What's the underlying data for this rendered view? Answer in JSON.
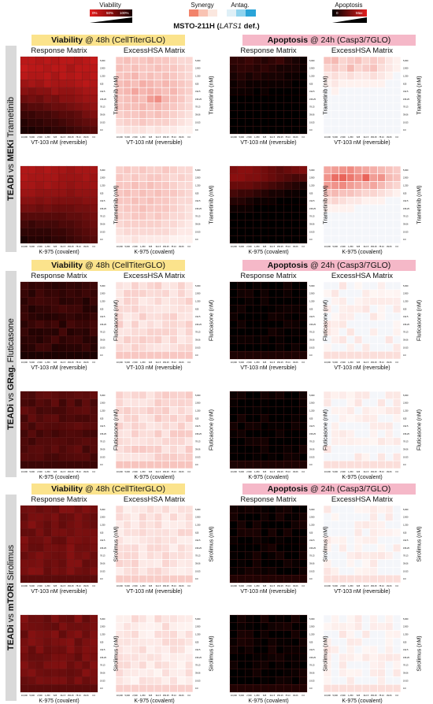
{
  "legend": {
    "viability": {
      "title": "Viability",
      "ticks": [
        "0%",
        "50%",
        "100%"
      ],
      "colors": [
        "#e21d1d",
        "#8a0d0d",
        "#1a0000"
      ]
    },
    "synergy": {
      "title": "Synergy",
      "colors": [
        "#f2836b",
        "#f9c3b3",
        "#fbe7df",
        "#ffffff",
        "#dff0f7",
        "#8fd3ee",
        "#2aa4d8"
      ]
    },
    "antag": {
      "title": "Antag."
    },
    "apoptosis": {
      "title": "Apoptosis",
      "ticks": [
        "0",
        "Max"
      ]
    }
  },
  "cell_line": {
    "name": "MSTO-211H",
    "gene": "LATS1",
    "suffix": " def.)"
  },
  "banners": {
    "viability": {
      "bold": "Viability",
      "rest": " @ 48h (CellTiterGLO)"
    },
    "apoptosis": {
      "bold": "Apoptosis",
      "rest": " @ 24h (Casp3/7GLO)"
    }
  },
  "matrix_titles": {
    "response": "Response Matrix",
    "excess": "ExcessHSA Matrix"
  },
  "sections": [
    {
      "label_prefix": "TEADi",
      "label_mid": " vs ",
      "label_bold": "MEKi",
      "label_drug": " Trametinib",
      "ylabel": "Trametinib (nM)"
    },
    {
      "label_prefix": "TEADi",
      "label_mid": " vs ",
      "label_bold": "GRag.",
      "label_drug": " Fluticasone",
      "ylabel": "Fluticasone (nM)"
    },
    {
      "label_prefix": "TEADi",
      "label_mid": " vs ",
      "label_bold": "mTORi",
      "label_drug": " Sirolimus",
      "ylabel": "Sirolimus (nM)"
    }
  ],
  "xlabels": [
    "VT-103 nM (reversible)",
    "K-975 (covalent)"
  ],
  "chart_data": {
    "type": "heatmap",
    "x_ticks": [
      "10,000",
      "5,000",
      "2,500",
      "1,250",
      "625",
      "312.5",
      "156.25",
      "78.13",
      "39.06",
      "0.0"
    ],
    "y_ticks": [
      "5,000",
      "2,500",
      "1,250",
      "625",
      "312.5",
      "156.25",
      "78.13",
      "39.06",
      "19.53",
      "0.0"
    ],
    "note": "viability heatmaps: 0-1 darkness; excessHSA: synergy intensity 0-1; apoptosis: 0-1",
    "panels": [
      {
        "section": 0,
        "row": 0,
        "viability": [
          [
            0.2,
            0.2,
            0.25,
            0.2,
            0.25,
            0.2,
            0.2,
            0.25,
            0.2,
            0.15
          ],
          [
            0.15,
            0.2,
            0.2,
            0.25,
            0.2,
            0.2,
            0.3,
            0.2,
            0.2,
            0.2
          ],
          [
            0.2,
            0.25,
            0.25,
            0.2,
            0.3,
            0.2,
            0.25,
            0.2,
            0.25,
            0.2
          ],
          [
            0.35,
            0.3,
            0.35,
            0.25,
            0.3,
            0.3,
            0.3,
            0.25,
            0.2,
            0.25
          ],
          [
            0.45,
            0.5,
            0.45,
            0.45,
            0.35,
            0.4,
            0.4,
            0.35,
            0.3,
            0.3
          ],
          [
            0.6,
            0.55,
            0.6,
            0.5,
            0.55,
            0.45,
            0.45,
            0.4,
            0.35,
            0.35
          ],
          [
            0.75,
            0.7,
            0.7,
            0.65,
            0.6,
            0.6,
            0.55,
            0.5,
            0.45,
            0.4
          ],
          [
            0.85,
            0.85,
            0.8,
            0.8,
            0.75,
            0.7,
            0.7,
            0.65,
            0.55,
            0.5
          ],
          [
            0.95,
            0.9,
            0.9,
            0.85,
            0.85,
            0.8,
            0.75,
            0.7,
            0.65,
            0.6
          ],
          [
            1.0,
            1.0,
            0.95,
            0.95,
            0.9,
            0.9,
            0.85,
            0.8,
            0.75,
            0.7
          ]
        ],
        "excess": [
          [
            0.3,
            0.35,
            0.3,
            0.3,
            0.35,
            0.3,
            0.3,
            0.25,
            0.2,
            0.2
          ],
          [
            0.35,
            0.3,
            0.35,
            0.3,
            0.3,
            0.35,
            0.3,
            0.3,
            0.25,
            0.2
          ],
          [
            0.3,
            0.35,
            0.4,
            0.3,
            0.35,
            0.3,
            0.35,
            0.3,
            0.25,
            0.2
          ],
          [
            0.35,
            0.4,
            0.35,
            0.45,
            0.4,
            0.35,
            0.4,
            0.35,
            0.3,
            0.25
          ],
          [
            0.35,
            0.4,
            0.5,
            0.4,
            0.45,
            0.4,
            0.35,
            0.4,
            0.3,
            0.25
          ],
          [
            0.3,
            0.35,
            0.4,
            0.35,
            0.55,
            0.65,
            0.4,
            0.35,
            0.3,
            0.2
          ],
          [
            0.3,
            0.35,
            0.35,
            0.4,
            0.35,
            0.4,
            0.35,
            0.3,
            0.25,
            0.2
          ],
          [
            0.25,
            0.3,
            0.3,
            0.35,
            0.3,
            0.35,
            0.3,
            0.25,
            0.2,
            0.15
          ],
          [
            0.2,
            0.25,
            0.25,
            0.3,
            0.25,
            0.25,
            0.25,
            0.2,
            0.15,
            0.1
          ],
          [
            0.1,
            0.15,
            0.15,
            0.15,
            0.1,
            0.15,
            0.1,
            0.1,
            0.05,
            0.05
          ]
        ],
        "apoptosis": [
          [
            0.2,
            0.2,
            0.25,
            0.2,
            0.15,
            0.2,
            0.25,
            0.15,
            0.1,
            0.05
          ],
          [
            0.15,
            0.2,
            0.2,
            0.15,
            0.2,
            0.15,
            0.1,
            0.1,
            0.1,
            0.05
          ],
          [
            0.1,
            0.15,
            0.1,
            0.15,
            0.1,
            0.1,
            0.1,
            0.05,
            0.05,
            0.0
          ],
          [
            0.05,
            0.1,
            0.05,
            0.05,
            0.05,
            0.05,
            0.05,
            0.05,
            0.0,
            0.0
          ],
          [
            0.05,
            0.05,
            0.05,
            0.0,
            0.05,
            0.0,
            0.0,
            0.0,
            0.0,
            0.0
          ],
          [
            0.0,
            0.0,
            0.0,
            0.0,
            0.0,
            0.0,
            0.0,
            0.0,
            0.0,
            0.0
          ],
          [
            0.0,
            0.0,
            0.0,
            0.0,
            0.0,
            0.0,
            0.0,
            0.0,
            0.0,
            0.0
          ],
          [
            0.0,
            0.0,
            0.0,
            0.0,
            0.0,
            0.0,
            0.0,
            0.0,
            0.0,
            0.0
          ],
          [
            0.0,
            0.0,
            0.0,
            0.0,
            0.0,
            0.0,
            0.0,
            0.0,
            0.0,
            0.0
          ],
          [
            0.0,
            0.0,
            0.0,
            0.0,
            0.0,
            0.0,
            0.0,
            0.0,
            0.0,
            0.0
          ]
        ],
        "apo_excess": [
          [
            0.3,
            0.35,
            0.2,
            0.25,
            0.3,
            0.2,
            0.25,
            0.2,
            0.1,
            0.05
          ],
          [
            0.2,
            0.25,
            0.2,
            0.35,
            0.2,
            0.25,
            0.3,
            0.15,
            0.1,
            0.05
          ],
          [
            0.1,
            0.15,
            0.1,
            0.15,
            0.1,
            0.1,
            0.15,
            0.1,
            0.05,
            0.0
          ],
          [
            0.05,
            0.1,
            0.05,
            0.05,
            0.05,
            0.05,
            0.05,
            0.05,
            0.0,
            0.0
          ],
          [
            0.0,
            0.05,
            0.0,
            0.0,
            0.0,
            0.0,
            0.0,
            0.0,
            0.0,
            0.0
          ],
          [
            0.0,
            0.0,
            0.0,
            0.0,
            0.0,
            0.0,
            0.0,
            0.0,
            0.0,
            0.0
          ],
          [
            0.0,
            0.0,
            0.0,
            0.0,
            0.0,
            0.0,
            0.0,
            0.0,
            0.0,
            0.0
          ],
          [
            0.0,
            0.0,
            0.0,
            0.0,
            0.0,
            0.0,
            0.0,
            0.0,
            0.0,
            0.0
          ],
          [
            0.0,
            0.0,
            0.0,
            0.0,
            0.0,
            0.0,
            0.0,
            0.0,
            0.0,
            0.0
          ],
          [
            0.0,
            0.0,
            0.0,
            0.0,
            0.0,
            0.0,
            0.0,
            0.0,
            0.0,
            0.0
          ]
        ]
      },
      {
        "section": 0,
        "row": 1,
        "viability": [
          [
            0.25,
            0.25,
            0.3,
            0.25,
            0.3,
            0.3,
            0.35,
            0.3,
            0.3,
            0.3
          ],
          [
            0.25,
            0.3,
            0.3,
            0.3,
            0.3,
            0.35,
            0.35,
            0.35,
            0.3,
            0.35
          ],
          [
            0.3,
            0.3,
            0.35,
            0.3,
            0.35,
            0.35,
            0.4,
            0.35,
            0.35,
            0.35
          ],
          [
            0.35,
            0.35,
            0.4,
            0.4,
            0.4,
            0.4,
            0.45,
            0.4,
            0.4,
            0.4
          ],
          [
            0.45,
            0.45,
            0.5,
            0.45,
            0.5,
            0.5,
            0.5,
            0.5,
            0.45,
            0.45
          ],
          [
            0.55,
            0.55,
            0.6,
            0.55,
            0.6,
            0.6,
            0.6,
            0.55,
            0.55,
            0.5
          ],
          [
            0.7,
            0.7,
            0.7,
            0.7,
            0.7,
            0.7,
            0.65,
            0.65,
            0.6,
            0.55
          ],
          [
            0.8,
            0.85,
            0.8,
            0.8,
            0.8,
            0.75,
            0.75,
            0.7,
            0.65,
            0.6
          ],
          [
            0.9,
            0.9,
            0.9,
            0.9,
            0.85,
            0.85,
            0.8,
            0.75,
            0.7,
            0.65
          ],
          [
            1.0,
            0.95,
            0.95,
            0.95,
            0.9,
            0.9,
            0.85,
            0.8,
            0.75,
            0.7
          ]
        ],
        "excess": [
          [
            0.25,
            0.3,
            0.25,
            0.3,
            0.25,
            0.25,
            0.3,
            0.25,
            0.2,
            0.2
          ],
          [
            0.3,
            0.25,
            0.3,
            0.25,
            0.3,
            0.3,
            0.25,
            0.2,
            0.25,
            0.2
          ],
          [
            0.3,
            0.3,
            0.35,
            0.3,
            0.35,
            0.3,
            0.3,
            0.25,
            0.2,
            0.2
          ],
          [
            0.3,
            0.35,
            0.3,
            0.35,
            0.3,
            0.35,
            0.3,
            0.3,
            0.25,
            0.2
          ],
          [
            0.3,
            0.3,
            0.35,
            0.3,
            0.35,
            0.3,
            0.3,
            0.25,
            0.2,
            0.2
          ],
          [
            0.25,
            0.3,
            0.3,
            0.35,
            0.3,
            0.3,
            0.3,
            0.25,
            0.2,
            0.15
          ],
          [
            0.25,
            0.25,
            0.3,
            0.3,
            0.25,
            0.3,
            0.25,
            0.2,
            0.2,
            0.15
          ],
          [
            0.2,
            0.25,
            0.25,
            0.25,
            0.25,
            0.25,
            0.2,
            0.2,
            0.15,
            0.1
          ],
          [
            0.15,
            0.2,
            0.2,
            0.2,
            0.2,
            0.2,
            0.2,
            0.15,
            0.1,
            0.1
          ],
          [
            0.1,
            0.1,
            0.15,
            0.1,
            0.1,
            0.1,
            0.1,
            0.05,
            0.05,
            0.05
          ]
        ],
        "apoptosis": [
          [
            0.55,
            0.6,
            0.6,
            0.55,
            0.5,
            0.45,
            0.4,
            0.45,
            0.5,
            0.55
          ],
          [
            0.6,
            0.6,
            0.55,
            0.55,
            0.5,
            0.45,
            0.4,
            0.35,
            0.3,
            0.35
          ],
          [
            0.45,
            0.45,
            0.45,
            0.4,
            0.35,
            0.3,
            0.25,
            0.2,
            0.15,
            0.1
          ],
          [
            0.3,
            0.25,
            0.25,
            0.2,
            0.15,
            0.1,
            0.1,
            0.05,
            0.05,
            0.0
          ],
          [
            0.15,
            0.15,
            0.1,
            0.05,
            0.05,
            0.05,
            0.0,
            0.0,
            0.0,
            0.0
          ],
          [
            0.05,
            0.05,
            0.05,
            0.0,
            0.0,
            0.0,
            0.0,
            0.0,
            0.0,
            0.0
          ],
          [
            0.0,
            0.0,
            0.0,
            0.0,
            0.0,
            0.0,
            0.0,
            0.0,
            0.0,
            0.0
          ],
          [
            0.0,
            0.0,
            0.0,
            0.0,
            0.0,
            0.0,
            0.0,
            0.0,
            0.0,
            0.0
          ],
          [
            0.0,
            0.0,
            0.0,
            0.0,
            0.0,
            0.0,
            0.0,
            0.0,
            0.0,
            0.0
          ],
          [
            0.0,
            0.0,
            0.0,
            0.0,
            0.0,
            0.0,
            0.0,
            0.0,
            0.0,
            0.0
          ]
        ],
        "apo_excess": [
          [
            0.45,
            0.5,
            0.55,
            0.6,
            0.5,
            0.45,
            0.4,
            0.35,
            0.3,
            0.25
          ],
          [
            0.55,
            0.75,
            0.8,
            0.7,
            0.6,
            0.8,
            0.5,
            0.55,
            0.35,
            0.3
          ],
          [
            0.5,
            0.55,
            0.6,
            0.5,
            0.45,
            0.4,
            0.45,
            0.35,
            0.25,
            0.2
          ],
          [
            0.3,
            0.35,
            0.3,
            0.3,
            0.25,
            0.2,
            0.2,
            0.15,
            0.1,
            0.05
          ],
          [
            0.15,
            0.2,
            0.15,
            0.1,
            0.1,
            0.05,
            0.05,
            0.05,
            0.0,
            0.0
          ],
          [
            0.05,
            0.05,
            0.05,
            0.05,
            0.0,
            0.0,
            0.0,
            0.0,
            0.0,
            0.0
          ],
          [
            0.0,
            0.0,
            0.0,
            0.0,
            0.0,
            0.0,
            0.0,
            0.0,
            0.0,
            0.0
          ],
          [
            0.0,
            0.0,
            0.0,
            0.0,
            0.0,
            0.0,
            0.0,
            0.0,
            0.0,
            0.0
          ],
          [
            0.0,
            0.0,
            0.0,
            0.0,
            0.0,
            0.0,
            0.0,
            0.0,
            0.0,
            0.0
          ],
          [
            0.0,
            0.0,
            0.0,
            0.0,
            0.0,
            0.0,
            0.0,
            0.0,
            0.0,
            0.0
          ]
        ]
      },
      {
        "section": 1,
        "row": 0,
        "viability_level": 0.88,
        "excess_level": 0.18,
        "apoptosis_level": 0.0,
        "apo_excess_level": 0.03
      },
      {
        "section": 1,
        "row": 1,
        "viability_level": 0.72,
        "excess_level": 0.2,
        "apoptosis_level": 0.0,
        "apo_excess_level": 0.03
      },
      {
        "section": 2,
        "row": 0,
        "viability_level": 0.55,
        "excess_level": 0.15,
        "apoptosis_level": 0.02,
        "apo_excess_level": 0.03
      },
      {
        "section": 2,
        "row": 1,
        "viability_level": 0.55,
        "excess_level": 0.12,
        "apoptosis_level": 0.02,
        "apo_excess_level": 0.03
      }
    ]
  }
}
